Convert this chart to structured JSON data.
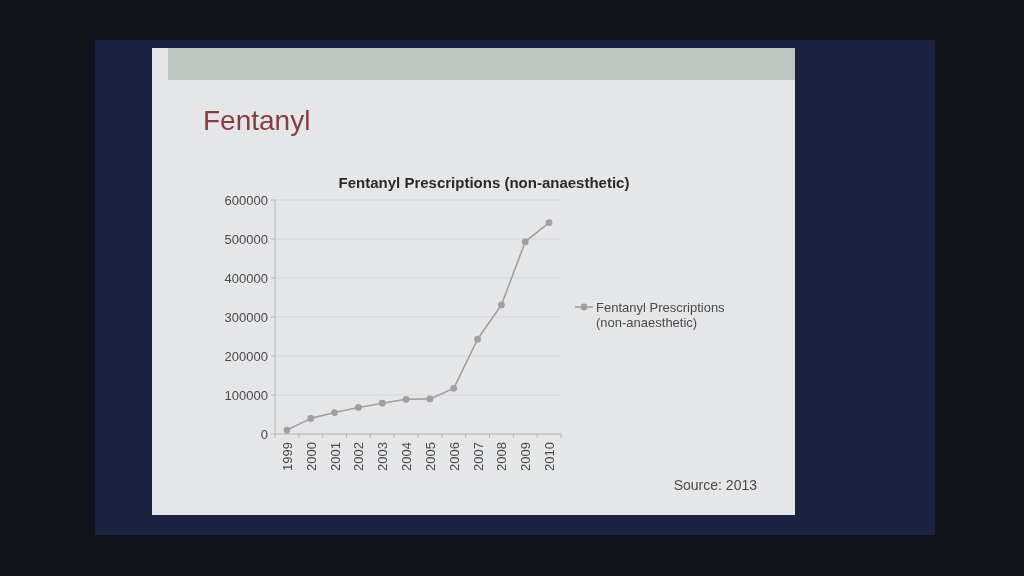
{
  "chart_data": {
    "type": "line",
    "title": "Fentanyl",
    "subtitle": "Fentanyl Prescriptions (non-anaesthetic)",
    "categories": [
      "1999",
      "2000",
      "2001",
      "2002",
      "2003",
      "2004",
      "2005",
      "2006",
      "2007",
      "2008",
      "2009",
      "2010"
    ],
    "series": [
      {
        "name": "Fentanyl Prescriptions (non-anaesthetic)",
        "color": "#a0a0a0",
        "values": [
          10000,
          40000,
          55000,
          68000,
          79000,
          89000,
          90000,
          117000,
          243000,
          331000,
          493000,
          542000
        ]
      }
    ],
    "ylim": [
      0,
      600000
    ],
    "yticks": [
      0,
      100000,
      200000,
      300000,
      400000,
      500000,
      600000
    ],
    "grid": "y",
    "legend": "right",
    "marker": "circle",
    "annotations": [
      "Source: 2013"
    ]
  }
}
